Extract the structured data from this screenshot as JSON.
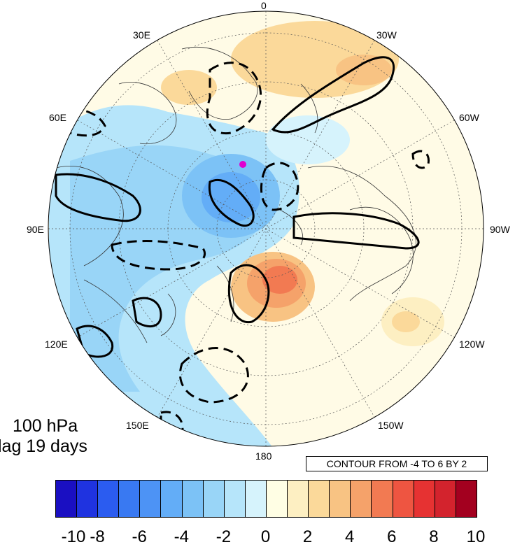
{
  "map": {
    "level_label": "100 hPa",
    "lag_label": "lag 19 days",
    "contour_note": "CONTOUR FROM -4 TO 6 BY 2",
    "marker_color": "#e000d0",
    "longitude_labels": {
      "top": "0",
      "bottom": "180",
      "left": "90E",
      "right": "90W",
      "l30": "30E",
      "r30": "30W",
      "l60": "60E",
      "r60": "60W",
      "l120": "120E",
      "r120": "120W",
      "l150": "150E",
      "r150": "150W"
    }
  },
  "colorbar": {
    "colors": [
      "#1a0fc2",
      "#1f33e0",
      "#2b5cf0",
      "#3979f2",
      "#4d93f5",
      "#63adf7",
      "#7cc2f6",
      "#99d5f7",
      "#b6e5fa",
      "#d6f3fc",
      "#fffee4",
      "#fdefc2",
      "#fbd99a",
      "#f8c383",
      "#f5a26a",
      "#f27a52",
      "#ee5541",
      "#e63232",
      "#d3232d",
      "#a3001f"
    ],
    "tick_labels": [
      "-10",
      "-8",
      "-6",
      "-4",
      "-2",
      "0",
      "2",
      "4",
      "6",
      "8",
      "10"
    ]
  }
}
